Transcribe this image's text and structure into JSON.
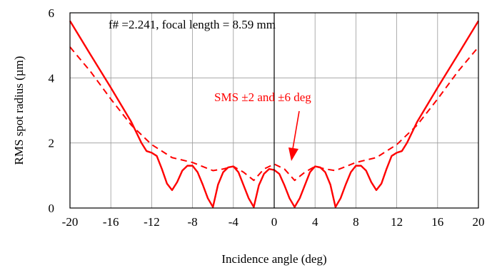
{
  "chart_data": {
    "type": "line",
    "title": "",
    "xlabel": "Incidence angle (deg)",
    "ylabel": "RMS spot radius (µm)",
    "xlim": [
      -20,
      20
    ],
    "ylim": [
      0,
      6
    ],
    "xticks": [
      -20,
      -16,
      -12,
      -8,
      -4,
      0,
      4,
      8,
      12,
      16,
      20
    ],
    "yticks": [
      0,
      2,
      4,
      6
    ],
    "grid": true,
    "annotations": [
      {
        "id": "fnum",
        "text": "f# =2.241,   focal length = 8.59 mm",
        "color": "#000000"
      },
      {
        "id": "sms",
        "text": "SMS  ±2 and ±6 deg",
        "color": "#ff0000"
      }
    ],
    "series": [
      {
        "style": "solid",
        "color": "#ff0000",
        "x": [
          -20,
          -18,
          -16,
          -14,
          -13,
          -12.5,
          -12,
          -11.5,
          -11,
          -10.5,
          -10,
          -9.5,
          -9,
          -8.5,
          -8,
          -7.5,
          -7,
          -6.5,
          -6,
          -5.5,
          -5,
          -4.5,
          -4,
          -3.5,
          -3,
          -2.5,
          -2,
          -1.5,
          -1,
          -0.5,
          0,
          0.5,
          1,
          1.5,
          2,
          2.5,
          3,
          3.5,
          4,
          4.5,
          5,
          5.5,
          6,
          6.5,
          7,
          7.5,
          8,
          8.5,
          9,
          9.5,
          10,
          10.5,
          11,
          11.5,
          12,
          12.5,
          13,
          14,
          16,
          18,
          20
        ],
        "y": [
          5.75,
          4.72,
          3.7,
          2.65,
          2.0,
          1.75,
          1.7,
          1.6,
          1.2,
          0.75,
          0.55,
          0.8,
          1.15,
          1.3,
          1.3,
          1.1,
          0.72,
          0.3,
          0.03,
          0.72,
          1.1,
          1.25,
          1.28,
          1.1,
          0.7,
          0.3,
          0.03,
          0.7,
          1.05,
          1.2,
          1.17,
          1.05,
          0.7,
          0.3,
          0.03,
          0.3,
          0.7,
          1.1,
          1.28,
          1.25,
          1.1,
          0.72,
          0.03,
          0.3,
          0.72,
          1.1,
          1.3,
          1.3,
          1.15,
          0.8,
          0.55,
          0.75,
          1.2,
          1.6,
          1.7,
          1.75,
          2.0,
          2.65,
          3.7,
          4.72,
          5.75
        ]
      },
      {
        "style": "dashed",
        "color": "#ff0000",
        "x": [
          -20,
          -18,
          -16,
          -14,
          -12,
          -10,
          -8,
          -6,
          -5,
          -4,
          -3,
          -2,
          -1,
          0,
          1,
          2,
          3,
          4,
          5,
          6,
          8,
          10,
          12,
          14,
          16,
          18,
          20
        ],
        "y": [
          4.95,
          4.2,
          3.35,
          2.55,
          1.95,
          1.55,
          1.4,
          1.15,
          1.2,
          1.28,
          1.1,
          0.85,
          1.2,
          1.35,
          1.2,
          0.85,
          1.1,
          1.28,
          1.2,
          1.15,
          1.4,
          1.55,
          1.95,
          2.55,
          3.35,
          4.2,
          4.95
        ]
      }
    ]
  }
}
